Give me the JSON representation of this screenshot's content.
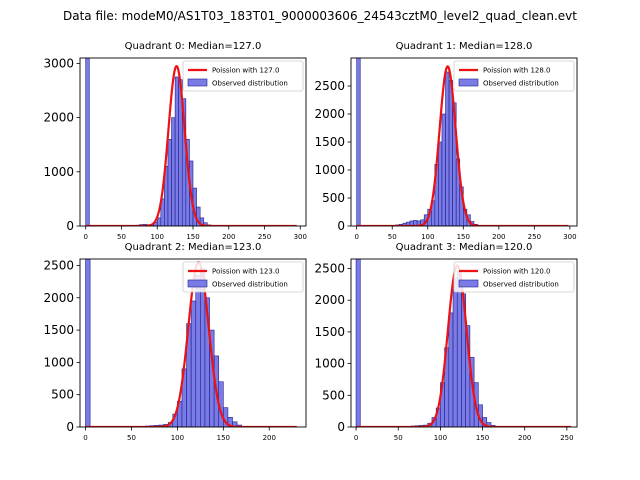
{
  "suptitle": "Data file: modeM0/AS1T03_183T01_9000003606_24543cztM0_level2_quad_clean.evt",
  "colors": {
    "bar_fill": "#7b7be6",
    "bar_edge": "#1f1f8f",
    "curve": "#ee1111",
    "axis": "#000000"
  },
  "chart_data": [
    {
      "type": "bar",
      "title": "Quadrant 0: Median=127.0",
      "median": 127.0,
      "bin_width": 5,
      "xlim": [
        -8,
        308
      ],
      "ylim": [
        0,
        3100
      ],
      "xticks": [
        0,
        50,
        100,
        150,
        200,
        250,
        300
      ],
      "yticks": [
        0,
        1000,
        2000,
        3000
      ],
      "legend": {
        "curve_label": "Poission with 127.0",
        "bar_label": "Observed distribution",
        "placement": "upper right"
      },
      "bins": [
        {
          "x": 0,
          "count": 3100
        },
        {
          "x": 60,
          "count": 5
        },
        {
          "x": 65,
          "count": 10
        },
        {
          "x": 70,
          "count": 15
        },
        {
          "x": 75,
          "count": 25
        },
        {
          "x": 80,
          "count": 30
        },
        {
          "x": 85,
          "count": 25
        },
        {
          "x": 90,
          "count": 30
        },
        {
          "x": 95,
          "count": 70
        },
        {
          "x": 100,
          "count": 150
        },
        {
          "x": 105,
          "count": 500
        },
        {
          "x": 110,
          "count": 1100
        },
        {
          "x": 115,
          "count": 1600
        },
        {
          "x": 120,
          "count": 2000
        },
        {
          "x": 125,
          "count": 2750
        },
        {
          "x": 130,
          "count": 2700
        },
        {
          "x": 135,
          "count": 2350
        },
        {
          "x": 140,
          "count": 1600
        },
        {
          "x": 145,
          "count": 1200
        },
        {
          "x": 150,
          "count": 700
        },
        {
          "x": 155,
          "count": 350
        },
        {
          "x": 160,
          "count": 150
        },
        {
          "x": 165,
          "count": 60
        },
        {
          "x": 170,
          "count": 20
        },
        {
          "x": 175,
          "count": 5
        }
      ],
      "curve": {
        "mean": 127.0,
        "peak": 2950,
        "x_range": [
          0,
          295
        ]
      }
    },
    {
      "type": "bar",
      "title": "Quadrant 1: Median=128.0",
      "median": 128.0,
      "bin_width": 5,
      "xlim": [
        -8,
        310
      ],
      "ylim": [
        0,
        3000
      ],
      "xticks": [
        0,
        50,
        100,
        150,
        200,
        250,
        300
      ],
      "yticks": [
        0,
        500,
        1000,
        1500,
        2000,
        2500
      ],
      "legend": {
        "curve_label": "Poission with 128.0",
        "bar_label": "Observed distribution",
        "placement": "upper right"
      },
      "bins": [
        {
          "x": 0,
          "count": 3000
        },
        {
          "x": 50,
          "count": 10
        },
        {
          "x": 55,
          "count": 20
        },
        {
          "x": 60,
          "count": 30
        },
        {
          "x": 65,
          "count": 50
        },
        {
          "x": 70,
          "count": 70
        },
        {
          "x": 75,
          "count": 90
        },
        {
          "x": 80,
          "count": 100
        },
        {
          "x": 85,
          "count": 90
        },
        {
          "x": 90,
          "count": 110
        },
        {
          "x": 95,
          "count": 200
        },
        {
          "x": 100,
          "count": 300
        },
        {
          "x": 105,
          "count": 450
        },
        {
          "x": 110,
          "count": 1100
        },
        {
          "x": 115,
          "count": 1500
        },
        {
          "x": 120,
          "count": 2000
        },
        {
          "x": 125,
          "count": 2750
        },
        {
          "x": 130,
          "count": 2600
        },
        {
          "x": 135,
          "count": 2200
        },
        {
          "x": 140,
          "count": 1200
        },
        {
          "x": 145,
          "count": 700
        },
        {
          "x": 150,
          "count": 300
        },
        {
          "x": 155,
          "count": 200
        },
        {
          "x": 160,
          "count": 80
        },
        {
          "x": 165,
          "count": 30
        },
        {
          "x": 170,
          "count": 10
        }
      ],
      "curve": {
        "mean": 128.0,
        "peak": 2850,
        "x_range": [
          0,
          298
        ]
      }
    },
    {
      "type": "bar",
      "title": "Quadrant 2: Median=123.0",
      "median": 123.0,
      "bin_width": 5,
      "xlim": [
        -6,
        240
      ],
      "ylim": [
        0,
        2600
      ],
      "xticks": [
        0,
        50,
        100,
        150,
        200
      ],
      "yticks": [
        0,
        500,
        1000,
        1500,
        2000,
        2500
      ],
      "legend": {
        "curve_label": "Poission with 123.0",
        "bar_label": "Observed distribution",
        "placement": "upper right"
      },
      "bins": [
        {
          "x": 0,
          "count": 2600
        },
        {
          "x": 60,
          "count": 10
        },
        {
          "x": 65,
          "count": 15
        },
        {
          "x": 70,
          "count": 20
        },
        {
          "x": 75,
          "count": 25
        },
        {
          "x": 80,
          "count": 30
        },
        {
          "x": 85,
          "count": 40
        },
        {
          "x": 90,
          "count": 70
        },
        {
          "x": 95,
          "count": 200
        },
        {
          "x": 100,
          "count": 400
        },
        {
          "x": 105,
          "count": 900
        },
        {
          "x": 110,
          "count": 1600
        },
        {
          "x": 115,
          "count": 1950
        },
        {
          "x": 120,
          "count": 2350
        },
        {
          "x": 125,
          "count": 2450
        },
        {
          "x": 130,
          "count": 2000
        },
        {
          "x": 135,
          "count": 1500
        },
        {
          "x": 140,
          "count": 1100
        },
        {
          "x": 145,
          "count": 700
        },
        {
          "x": 150,
          "count": 300
        },
        {
          "x": 155,
          "count": 150
        },
        {
          "x": 160,
          "count": 80
        },
        {
          "x": 165,
          "count": 30
        },
        {
          "x": 170,
          "count": 10
        }
      ],
      "curve": {
        "mean": 123.0,
        "peak": 2550,
        "x_range": [
          0,
          230
        ]
      }
    },
    {
      "type": "bar",
      "title": "Quadrant 3: Median=120.0",
      "median": 120.0,
      "bin_width": 5,
      "xlim": [
        -6,
        262
      ],
      "ylim": [
        0,
        2650
      ],
      "xticks": [
        0,
        50,
        100,
        150,
        200,
        250
      ],
      "yticks": [
        0,
        500,
        1000,
        1500,
        2000,
        2500
      ],
      "legend": {
        "curve_label": "Poission with 120.0",
        "bar_label": "Observed distribution",
        "placement": "upper right"
      },
      "bins": [
        {
          "x": 0,
          "count": 2650
        },
        {
          "x": 55,
          "count": 5
        },
        {
          "x": 60,
          "count": 10
        },
        {
          "x": 65,
          "count": 15
        },
        {
          "x": 70,
          "count": 20
        },
        {
          "x": 75,
          "count": 25
        },
        {
          "x": 80,
          "count": 30
        },
        {
          "x": 85,
          "count": 60
        },
        {
          "x": 90,
          "count": 150
        },
        {
          "x": 95,
          "count": 300
        },
        {
          "x": 100,
          "count": 700
        },
        {
          "x": 105,
          "count": 1250
        },
        {
          "x": 110,
          "count": 1800
        },
        {
          "x": 115,
          "count": 2350
        },
        {
          "x": 120,
          "count": 2450
        },
        {
          "x": 125,
          "count": 2100
        },
        {
          "x": 130,
          "count": 1600
        },
        {
          "x": 135,
          "count": 1100
        },
        {
          "x": 140,
          "count": 700
        },
        {
          "x": 145,
          "count": 350
        },
        {
          "x": 150,
          "count": 150
        },
        {
          "x": 155,
          "count": 70
        },
        {
          "x": 160,
          "count": 25
        },
        {
          "x": 165,
          "count": 10
        }
      ],
      "curve": {
        "mean": 120.0,
        "peak": 2550,
        "x_range": [
          0,
          255
        ]
      }
    }
  ]
}
